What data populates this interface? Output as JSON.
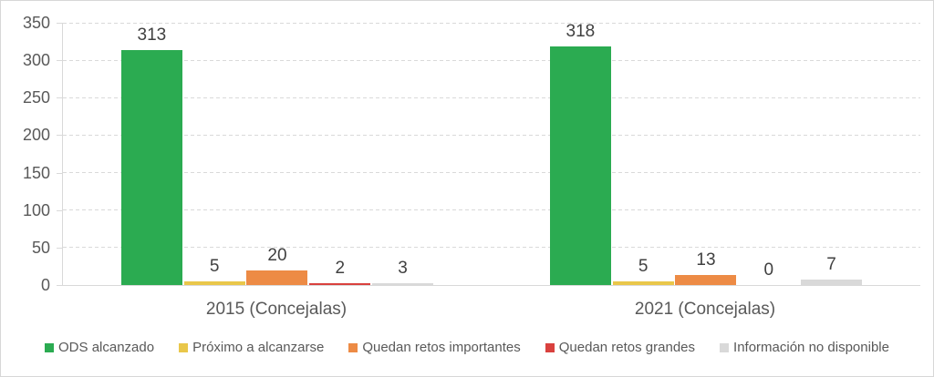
{
  "chart_data": {
    "type": "bar",
    "title": "",
    "categories": [
      "2015 (Concejalas)",
      "2021 (Concejalas)"
    ],
    "series": [
      {
        "name": "ODS alcanzado",
        "color": "#2bab51",
        "values": [
          313,
          318
        ]
      },
      {
        "name": "Próximo a alcanzarse",
        "color": "#e9c74a",
        "values": [
          5,
          5
        ]
      },
      {
        "name": "Quedan retos importantes",
        "color": "#ed8b45",
        "values": [
          20,
          13
        ]
      },
      {
        "name": "Quedan retos grandes",
        "color": "#d9413e",
        "values": [
          2,
          0
        ]
      },
      {
        "name": "Información no disponible",
        "color": "#d9d9d9",
        "values": [
          3,
          7
        ]
      }
    ],
    "ylim": [
      0,
      350
    ],
    "yticks": [
      0,
      50,
      100,
      150,
      200,
      250,
      300,
      350
    ],
    "grid": "horizontal-dashed",
    "legend_position": "bottom",
    "data_labels": true
  }
}
